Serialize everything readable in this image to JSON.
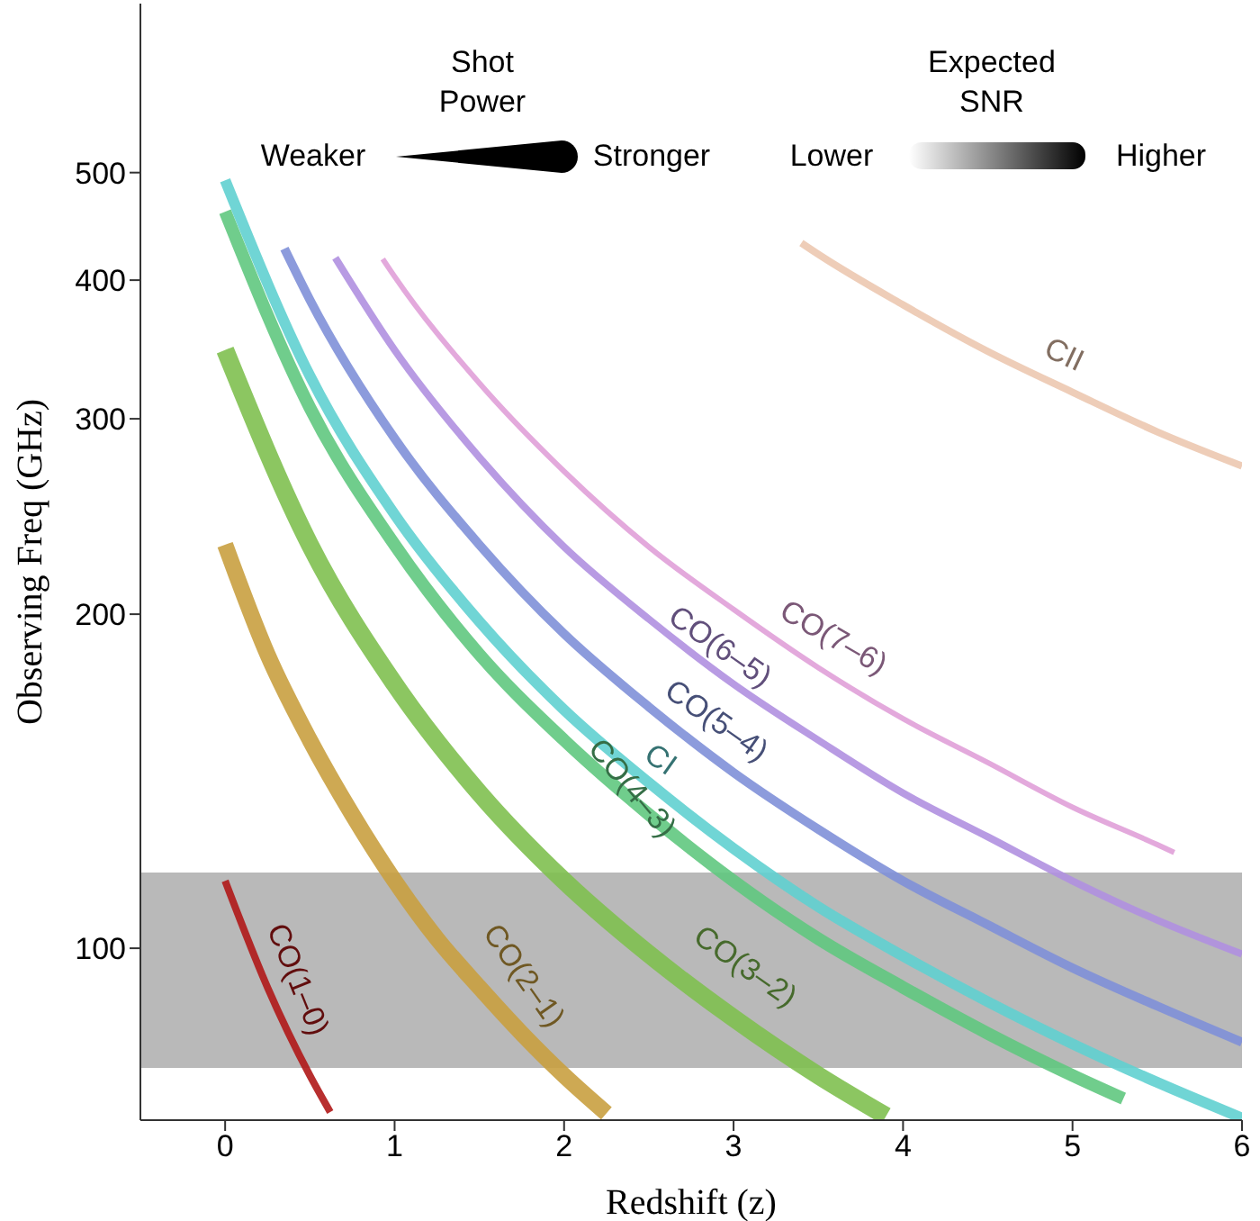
{
  "chart_data": {
    "type": "line",
    "xlabel": "Redshift (z)",
    "ylabel": "Observing Freq (GHz)",
    "xlim": [
      -0.5,
      6
    ],
    "xticks": [
      0,
      1,
      2,
      3,
      4,
      5,
      6
    ],
    "ylim": [
      70,
      710
    ],
    "yticks": [
      100,
      200,
      300,
      400,
      500
    ],
    "log": "y",
    "grid": false,
    "marker": "none",
    "series": [
      {
        "name": "CO(1–0)",
        "color": "#b01818",
        "x": [
          0,
          0.25,
          0.5,
          0.62
        ],
        "values": [
          115,
          92.2,
          76.8,
          71.2
        ]
      },
      {
        "name": "CO(2–1)",
        "color": "#c9a040",
        "x": [
          0,
          0.25,
          0.5,
          0.75,
          1,
          1.25,
          1.5,
          1.75,
          2,
          2.25
        ],
        "values": [
          231,
          184,
          154,
          132,
          115,
          102,
          92.2,
          83.8,
          76.8,
          71.0
        ]
      },
      {
        "name": "CO(3–2)",
        "color": "#80c050",
        "x": [
          0,
          0.5,
          1,
          1.5,
          2,
          2.5,
          3,
          3.5,
          3.9
        ],
        "values": [
          346,
          231,
          173,
          138,
          115,
          98.8,
          86.5,
          76.8,
          70.6
        ]
      },
      {
        "name": "CO(4–3)",
        "color": "#60c880",
        "x": [
          0,
          0.5,
          1,
          1.5,
          2,
          2.5,
          3,
          3.5,
          4,
          4.5,
          5,
          5.3
        ],
        "values": [
          461,
          307,
          231,
          184,
          154,
          132,
          115,
          102,
          92.2,
          83.8,
          76.8,
          73.2
        ]
      },
      {
        "name": "CI",
        "color": "#60d0d0",
        "x": [
          0,
          0.5,
          1,
          1.5,
          2,
          2.5,
          3,
          3.5,
          4,
          4.5,
          5,
          5.5,
          6
        ],
        "values": [
          492,
          328,
          246,
          197,
          164,
          141,
          123,
          109,
          98.4,
          89.5,
          82.0,
          75.7,
          70.3
        ]
      },
      {
        "name": "CO(5–4)",
        "color": "#8090d8",
        "x": [
          0.35,
          0.5,
          1,
          1.5,
          2,
          2.5,
          3,
          3.5,
          4,
          4.5,
          5,
          5.5,
          6
        ],
        "values": [
          427,
          384,
          288,
          231,
          192,
          165,
          144,
          128,
          115,
          105,
          96.0,
          88.7,
          82.3
        ]
      },
      {
        "name": "CO(6–5)",
        "color": "#b090e0",
        "x": [
          0.65,
          1,
          1.5,
          2,
          2.5,
          3,
          3.5,
          4,
          4.5,
          5,
          5.5,
          6
        ],
        "values": [
          419,
          346,
          277,
          230,
          198,
          173,
          154,
          138,
          126,
          115,
          106,
          98.8
        ]
      },
      {
        "name": "CO(7–6)",
        "color": "#e0a0d8",
        "x": [
          0.93,
          1,
          1.5,
          2,
          2.5,
          3,
          3.5,
          4,
          4.5,
          5,
          5.5,
          5.6
        ],
        "values": [
          418,
          403,
          323,
          269,
          230,
          202,
          179,
          161,
          147,
          134,
          124,
          122
        ]
      },
      {
        "name": "CII",
        "color": "#ecc8b0",
        "x": [
          3.4,
          3.5,
          4,
          4.5,
          5,
          5.5,
          6
        ],
        "values": [
          432,
          422,
          380,
          345,
          317,
          292,
          272
        ]
      }
    ],
    "bands": [
      {
        "axis": "y",
        "from": 78,
        "to": 117,
        "color": "#808080"
      }
    ],
    "annotations": [
      "Shot Power",
      "Weaker",
      "Stronger",
      "Expected SNR",
      "Lower",
      "Higher"
    ]
  }
}
